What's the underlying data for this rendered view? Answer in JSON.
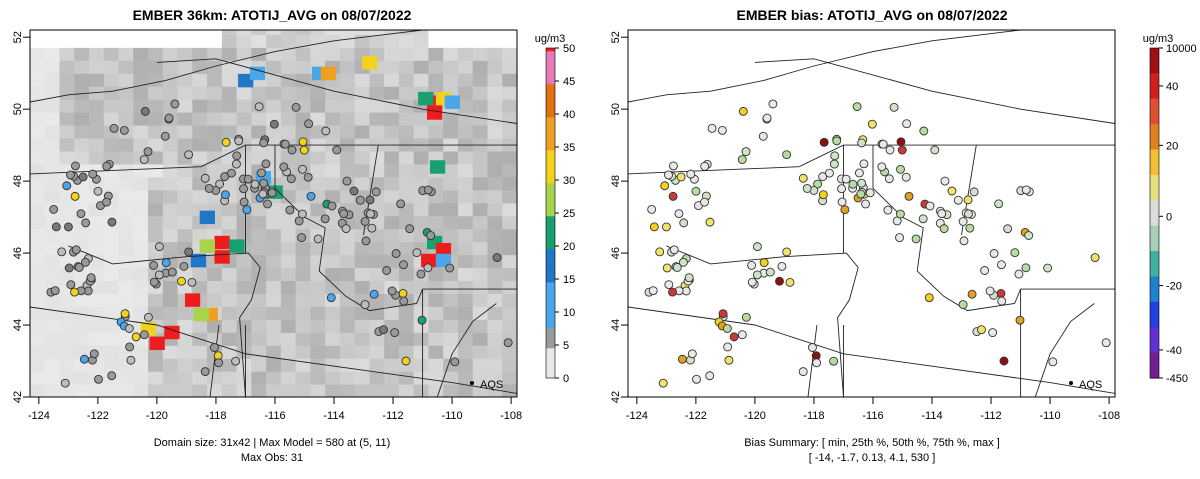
{
  "left_panel": {
    "title": "EMBER 36km: ATOTIJ_AVG on 08/07/2022",
    "footer_line1": "Domain size: 31x42 | Max Model = 580 at (5, 11)",
    "footer_line2": "Max Obs: 31",
    "colorbar_unit": "ug/m3",
    "colorbar_ticks": [
      "0",
      "5",
      "10",
      "15",
      "20",
      "25",
      "30",
      "35",
      "40",
      "45",
      "50"
    ],
    "aqs_label": "AQS"
  },
  "right_panel": {
    "title": "EMBER bias: ATOTIJ_AVG on 08/07/2022",
    "footer_line1": "Bias Summary: [ min, 25th %, 50th %, 75th %, max ]",
    "footer_line2": "[ -14,   -1.7,   0.13,   4.1,   530 ]",
    "colorbar_unit": "ug/m3",
    "colorbar_ticks": [
      "10000",
      "40",
      "20",
      "0",
      "-20",
      "-40",
      "-450"
    ],
    "aqs_label": "AQS"
  },
  "chart_data": [
    {
      "type": "heatmap",
      "title": "EMBER 36km: ATOTIJ_AVG on 08/07/2022",
      "xlabel": "",
      "ylabel": "",
      "xlim": [
        -124.3,
        -107.8
      ],
      "ylim": [
        42.0,
        52.2
      ],
      "x_ticks": [
        "-124",
        "-122",
        "-120",
        "-118",
        "-116",
        "-114",
        "-112",
        "-110",
        "-108"
      ],
      "y_ticks": [
        "42",
        "44",
        "46",
        "48",
        "50",
        "52"
      ],
      "colorbar": {
        "label": "ug/m3",
        "range": [
          0,
          50
        ],
        "ticks": [
          0,
          5,
          10,
          15,
          20,
          25,
          30,
          35,
          40,
          45,
          50
        ]
      },
      "hotspots": [
        {
          "lon": -120.0,
          "lat": 43.5,
          "value": 50
        },
        {
          "lon": -119.5,
          "lat": 43.8,
          "value": 50
        },
        {
          "lon": -120.3,
          "lat": 43.9,
          "value": 30
        },
        {
          "lon": -118.8,
          "lat": 44.7,
          "value": 50
        },
        {
          "lon": -118.2,
          "lat": 44.3,
          "value": 38
        },
        {
          "lon": -118.5,
          "lat": 44.3,
          "value": 28
        },
        {
          "lon": -117.8,
          "lat": 46.3,
          "value": 50
        },
        {
          "lon": -117.8,
          "lat": 45.9,
          "value": 50
        },
        {
          "lon": -118.3,
          "lat": 46.2,
          "value": 28
        },
        {
          "lon": -118.6,
          "lat": 45.8,
          "value": 15
        },
        {
          "lon": -117.3,
          "lat": 46.2,
          "value": 22
        },
        {
          "lon": -118.3,
          "lat": 47.0,
          "value": 15
        },
        {
          "lon": -116.0,
          "lat": 47.7,
          "value": 20
        },
        {
          "lon": -116.4,
          "lat": 48.1,
          "value": 12
        },
        {
          "lon": -114.5,
          "lat": 51.0,
          "value": 14
        },
        {
          "lon": -114.2,
          "lat": 51.0,
          "value": 38
        },
        {
          "lon": -112.8,
          "lat": 51.3,
          "value": 30
        },
        {
          "lon": -110.6,
          "lat": 50.2,
          "value": 50
        },
        {
          "lon": -110.3,
          "lat": 50.3,
          "value": 30
        },
        {
          "lon": -110.6,
          "lat": 49.9,
          "value": 50
        },
        {
          "lon": -110.9,
          "lat": 50.3,
          "value": 20
        },
        {
          "lon": -110.0,
          "lat": 50.2,
          "value": 14
        },
        {
          "lon": -110.5,
          "lat": 48.4,
          "value": 20
        },
        {
          "lon": -110.6,
          "lat": 46.3,
          "value": 22
        },
        {
          "lon": -110.8,
          "lat": 45.8,
          "value": 50
        },
        {
          "lon": -110.3,
          "lat": 46.1,
          "value": 50
        },
        {
          "lon": -110.3,
          "lat": 45.8,
          "value": 12
        },
        {
          "lon": -117.0,
          "lat": 50.8,
          "value": 18
        },
        {
          "lon": -116.6,
          "lat": 51.0,
          "value": 14
        }
      ],
      "observations_value_range": [
        0,
        31
      ]
    },
    {
      "type": "scatter",
      "title": "EMBER bias: ATOTIJ_AVG on 08/07/2022",
      "xlim": [
        -124.3,
        -107.8
      ],
      "ylim": [
        42.0,
        52.2
      ],
      "x_ticks": [
        "-124",
        "-122",
        "-120",
        "-118",
        "-116",
        "-114",
        "-112",
        "-110",
        "-108"
      ],
      "y_ticks": [
        "42",
        "44",
        "46",
        "48",
        "50",
        "52"
      ],
      "colorbar": {
        "label": "ug/m3",
        "ticks": [
          "10000",
          "40",
          "20",
          "0",
          "-20",
          "-40",
          "-450"
        ]
      },
      "bias_summary": {
        "min": -14,
        "p25": -1.7,
        "p50": 0.13,
        "p75": 4.1,
        "max": 530
      }
    }
  ],
  "colors": {
    "background_gray": "#d3d3d3",
    "ocean_gray": "#e6e6e6",
    "hot_red": "#ee1c1c",
    "station_edge": "#333333"
  }
}
